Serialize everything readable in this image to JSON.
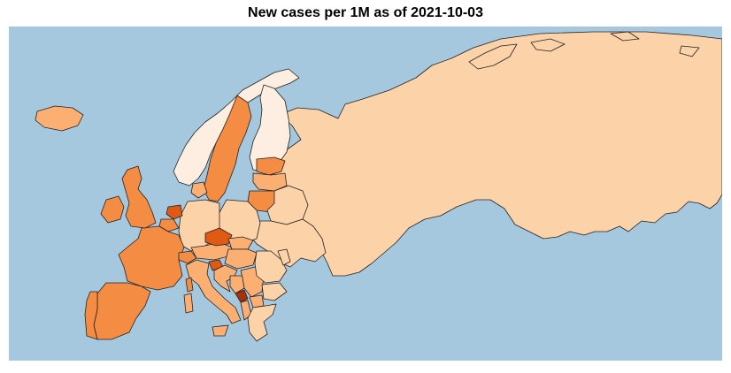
{
  "title": "New cases per 1M as of  2021-10-03",
  "colors": {
    "ocean": "#a6c8df",
    "very_low": "#feeee1",
    "low": "#fcd2a9",
    "medium": "#fbaf72",
    "high": "#f58c43",
    "very_high": "#e05a14",
    "highest": "#a83208"
  },
  "regions": [
    {
      "name": "Iceland",
      "level": "medium"
    },
    {
      "name": "Ireland",
      "level": "high"
    },
    {
      "name": "United Kingdom",
      "level": "high"
    },
    {
      "name": "Norway",
      "level": "very_low"
    },
    {
      "name": "Sweden",
      "level": "high"
    },
    {
      "name": "Finland",
      "level": "very_low"
    },
    {
      "name": "Russia",
      "level": "low"
    },
    {
      "name": "Estonia",
      "level": "high"
    },
    {
      "name": "Latvia",
      "level": "medium"
    },
    {
      "name": "Lithuania",
      "level": "high"
    },
    {
      "name": "Belarus",
      "level": "low"
    },
    {
      "name": "Ukraine",
      "level": "low"
    },
    {
      "name": "Poland",
      "level": "low"
    },
    {
      "name": "Germany",
      "level": "low"
    },
    {
      "name": "Denmark",
      "level": "medium"
    },
    {
      "name": "Netherlands",
      "level": "very_high"
    },
    {
      "name": "Belgium",
      "level": "high"
    },
    {
      "name": "France",
      "level": "high"
    },
    {
      "name": "Switzerland",
      "level": "high"
    },
    {
      "name": "Austria",
      "level": "medium"
    },
    {
      "name": "Czechia",
      "level": "very_high"
    },
    {
      "name": "Slovakia",
      "level": "medium"
    },
    {
      "name": "Hungary",
      "level": "medium"
    },
    {
      "name": "Slovenia",
      "level": "very_high"
    },
    {
      "name": "Croatia",
      "level": "medium"
    },
    {
      "name": "Bosnia and Herzegovina",
      "level": "medium"
    },
    {
      "name": "Serbia",
      "level": "medium"
    },
    {
      "name": "Montenegro",
      "level": "highest"
    },
    {
      "name": "Albania",
      "level": "medium"
    },
    {
      "name": "North Macedonia",
      "level": "medium"
    },
    {
      "name": "Romania",
      "level": "low"
    },
    {
      "name": "Moldova",
      "level": "low"
    },
    {
      "name": "Bulgaria",
      "level": "low"
    },
    {
      "name": "Greece",
      "level": "low"
    },
    {
      "name": "Italy",
      "level": "medium"
    },
    {
      "name": "Spain",
      "level": "high"
    },
    {
      "name": "Portugal",
      "level": "high"
    },
    {
      "name": "Corsica",
      "level": "high"
    },
    {
      "name": "Sardinia",
      "level": "medium"
    },
    {
      "name": "Sicily",
      "level": "medium"
    }
  ]
}
